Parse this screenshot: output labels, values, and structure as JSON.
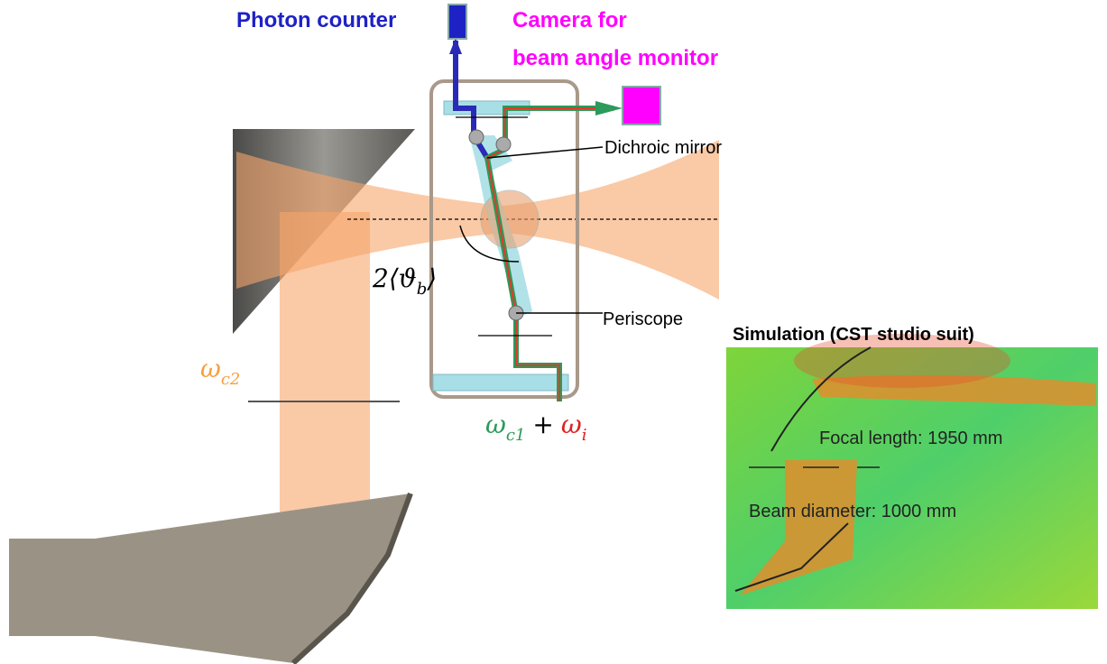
{
  "labels": {
    "photon_counter": "Photon counter",
    "camera": [
      "Camera for",
      "beam angle monitor"
    ],
    "dichroic_mirror": "Dichroic mirror",
    "angle": {
      "prefix": "2⟨ϑ",
      "sub": "b",
      "suffix": "⟩"
    },
    "periscope": "Periscope",
    "omega_c2": {
      "main": "ω",
      "sub": "c2"
    },
    "omega_sum": {
      "a": "ω",
      "a_sub": "c1",
      "plus": "+",
      "b": "ω",
      "b_sub": "i"
    }
  },
  "simulation": {
    "title": "Simulation (CST studio suit)",
    "focal_length": "Focal length: 1950 mm",
    "beam_diameter": "Beam diameter: 1000 mm"
  }
}
